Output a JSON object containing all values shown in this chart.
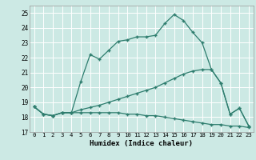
{
  "xlabel": "Humidex (Indice chaleur)",
  "ylabel": "",
  "xlim": [
    -0.5,
    23.5
  ],
  "ylim": [
    17,
    25.5
  ],
  "yticks": [
    17,
    18,
    19,
    20,
    21,
    22,
    23,
    24,
    25
  ],
  "xticks": [
    0,
    1,
    2,
    3,
    4,
    5,
    6,
    7,
    8,
    9,
    10,
    11,
    12,
    13,
    14,
    15,
    16,
    17,
    18,
    19,
    20,
    21,
    22,
    23
  ],
  "bg_color": "#cce9e4",
  "line_color": "#2e7d6e",
  "grid_color": "#ffffff",
  "line1_y": [
    18.7,
    18.2,
    18.1,
    18.3,
    18.3,
    20.4,
    22.2,
    21.9,
    22.5,
    23.1,
    23.2,
    23.4,
    23.4,
    23.5,
    24.3,
    24.9,
    24.5,
    23.7,
    23.0,
    21.2,
    20.3,
    18.2,
    18.6,
    17.4
  ],
  "line2_y": [
    18.7,
    18.2,
    18.1,
    18.3,
    18.3,
    18.5,
    18.65,
    18.8,
    19.0,
    19.2,
    19.4,
    19.6,
    19.8,
    20.0,
    20.3,
    20.6,
    20.9,
    21.1,
    21.2,
    21.2,
    20.3,
    18.2,
    18.6,
    17.4
  ],
  "line3_y": [
    18.7,
    18.2,
    18.1,
    18.3,
    18.3,
    18.3,
    18.3,
    18.3,
    18.3,
    18.3,
    18.2,
    18.2,
    18.1,
    18.1,
    18.0,
    17.9,
    17.8,
    17.7,
    17.6,
    17.5,
    17.5,
    17.4,
    17.4,
    17.3
  ]
}
